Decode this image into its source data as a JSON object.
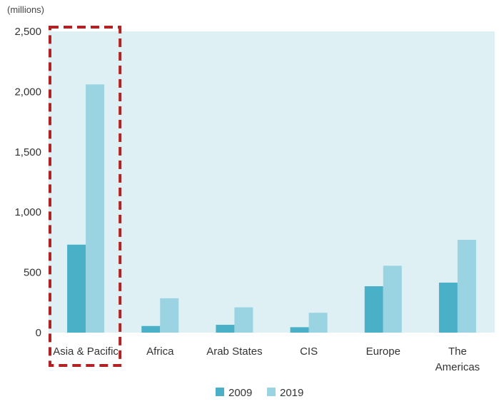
{
  "chart_data": {
    "type": "bar",
    "unit_label": "(millions)",
    "categories": [
      [
        "Asia & Pacific"
      ],
      [
        "Africa"
      ],
      [
        "Arab States"
      ],
      [
        "CIS"
      ],
      [
        "Europe"
      ],
      [
        "The",
        "Americas"
      ]
    ],
    "series": [
      {
        "name": "2009",
        "values": [
          730,
          55,
          65,
          45,
          385,
          415
        ],
        "color": "#4ab0c8"
      },
      {
        "name": "2019",
        "values": [
          2060,
          285,
          210,
          165,
          555,
          770
        ],
        "color": "#9ad3e2"
      }
    ],
    "ylim": [
      0,
      2500
    ],
    "yticks": [
      0,
      500,
      1000,
      1500,
      2000,
      2500
    ],
    "ytick_labels": [
      "0",
      "500",
      "1,000",
      "1,500",
      "2,000",
      "2,500"
    ],
    "plot_background": "#dff0f5",
    "highlight": {
      "category": "Asia & Pacific",
      "color": "#b22222",
      "style": "dashed"
    },
    "legend_position": "bottom-center",
    "grid": false
  }
}
